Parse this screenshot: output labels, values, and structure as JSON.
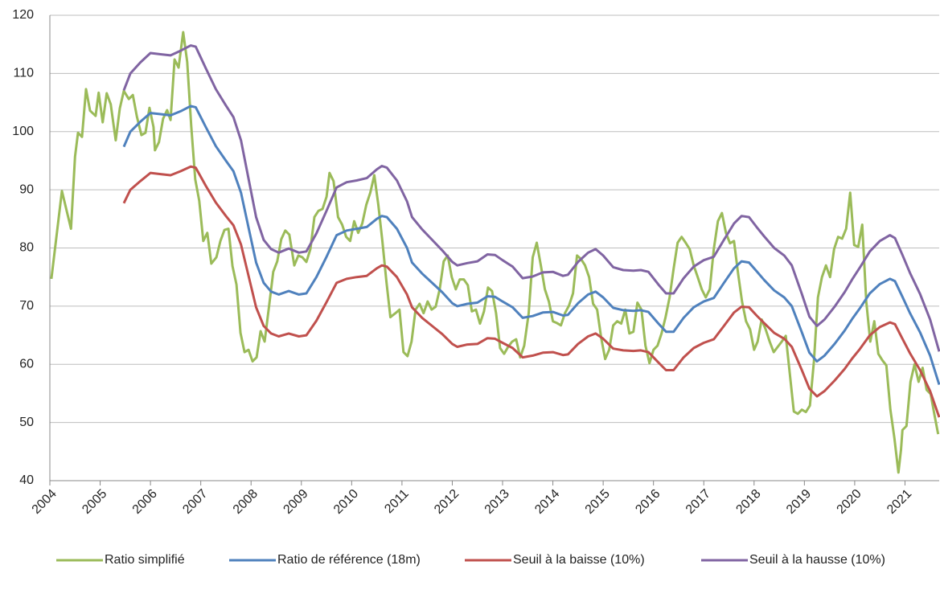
{
  "chart_data": {
    "type": "line",
    "xlim": [
      2004,
      2021.68
    ],
    "xticks": [
      2004,
      2005,
      2006,
      2007,
      2008,
      2009,
      2010,
      2011,
      2012,
      2013,
      2014,
      2015,
      2016,
      2017,
      2018,
      2019,
      2020,
      2021
    ],
    "ylim": [
      40,
      120
    ],
    "yticks": [
      40,
      50,
      60,
      70,
      80,
      90,
      100,
      110,
      120
    ],
    "grid": true,
    "legend": "bottom",
    "series": [
      {
        "name": "Ratio simplifié",
        "color": "#9bbb59",
        "x": [
          2004.03,
          2004.24,
          2004.42,
          2004.5,
          2004.56,
          2004.64,
          2004.72,
          2004.8,
          2004.91,
          2004.97,
          2005.05,
          2005.13,
          2005.21,
          2005.31,
          2005.39,
          2005.47,
          2005.57,
          2005.65,
          2005.73,
          2005.82,
          2005.9,
          2005.98,
          2006.06,
          2006.09,
          2006.17,
          2006.25,
          2006.33,
          2006.4,
          2006.48,
          2006.56,
          2006.65,
          2006.73,
          2006.81,
          2006.89,
          2006.97,
          2007.05,
          2007.13,
          2007.21,
          2007.31,
          2007.39,
          2007.47,
          2007.55,
          2007.63,
          2007.71,
          2007.79,
          2007.87,
          2007.95,
          2008.03,
          2008.11,
          2008.19,
          2008.27,
          2008.36,
          2008.44,
          2008.52,
          2008.6,
          2008.68,
          2008.76,
          2008.86,
          2008.94,
          2009.02,
          2009.1,
          2009.18,
          2009.26,
          2009.34,
          2009.42,
          2009.5,
          2009.56,
          2009.64,
          2009.73,
          2009.81,
          2009.89,
          2009.97,
          2010.05,
          2010.13,
          2010.21,
          2010.29,
          2010.37,
          2010.45,
          2010.53,
          2010.61,
          2010.69,
          2010.77,
          2010.87,
          2010.95,
          2011.03,
          2011.11,
          2011.19,
          2011.27,
          2011.35,
          2011.43,
          2011.51,
          2011.59,
          2011.67,
          2011.75,
          2011.83,
          2011.91,
          2011.99,
          2012.07,
          2012.15,
          2012.23,
          2012.31,
          2012.39,
          2012.47,
          2012.55,
          2012.63,
          2012.71,
          2012.79,
          2012.87,
          2012.95,
          2013.03,
          2013.11,
          2013.19,
          2013.27,
          2013.35,
          2013.43,
          2013.52,
          2013.6,
          2013.68,
          2013.76,
          2013.84,
          2013.92,
          2014.0,
          2014.08,
          2014.16,
          2014.24,
          2014.32,
          2014.4,
          2014.48,
          2014.56,
          2014.64,
          2014.72,
          2014.8,
          2014.88,
          2014.96,
          2015.04,
          2015.12,
          2015.2,
          2015.28,
          2015.36,
          2015.44,
          2015.52,
          2015.6,
          2015.68,
          2015.76,
          2015.84,
          2015.92,
          2016.0,
          2016.08,
          2016.16,
          2016.24,
          2016.32,
          2016.4,
          2016.48,
          2016.56,
          2016.64,
          2016.72,
          2016.8,
          2016.88,
          2016.96,
          2017.04,
          2017.12,
          2017.2,
          2017.28,
          2017.36,
          2017.44,
          2017.52,
          2017.6,
          2017.68,
          2017.76,
          2017.84,
          2017.92,
          2018.0,
          2018.07,
          2018.15,
          2018.23,
          2018.31,
          2018.39,
          2018.47,
          2018.55,
          2018.63,
          2018.71,
          2018.79,
          2018.87,
          2018.95,
          2019.03,
          2019.11,
          2019.19,
          2019.27,
          2019.35,
          2019.43,
          2019.51,
          2019.59,
          2019.67,
          2019.75,
          2019.83,
          2019.91,
          2019.99,
          2020.07,
          2020.15,
          2020.23,
          2020.31,
          2020.39,
          2020.47,
          2020.55,
          2020.63,
          2020.71,
          2020.79,
          2020.87,
          2020.92,
          2020.95,
          2021.03,
          2021.11,
          2021.19,
          2021.27,
          2021.35,
          2021.43,
          2021.51,
          2021.59,
          2021.66
        ],
        "values": [
          74.7,
          89.8,
          83.3,
          95.7,
          99.8,
          99.1,
          107.3,
          103.6,
          102.7,
          106.7,
          101.6,
          106.6,
          104.7,
          98.5,
          104,
          107,
          105.6,
          106.3,
          102.6,
          99.4,
          99.8,
          104.1,
          100.8,
          96.8,
          98.2,
          102.2,
          103.7,
          102,
          112.4,
          111,
          117.1,
          112,
          101,
          91.8,
          88.1,
          81.2,
          82.6,
          77.3,
          78.4,
          81.2,
          83.1,
          83.3,
          76.9,
          73.7,
          65.4,
          62.1,
          62.5,
          60.5,
          61.2,
          65.7,
          63.9,
          70.1,
          75.9,
          77.7,
          81.5,
          83,
          82.3,
          77,
          78.7,
          78.4,
          77.6,
          79.8,
          85.3,
          86.4,
          86.7,
          88.8,
          92.9,
          91.5,
          85.3,
          84,
          81.9,
          81.2,
          84.6,
          82.6,
          84.2,
          87.4,
          89.5,
          92.5,
          87.4,
          81.2,
          74.3,
          68.1,
          68.8,
          69.4,
          62.1,
          61.4,
          63.9,
          69.4,
          70.4,
          68.8,
          70.8,
          69.4,
          69.9,
          72.9,
          77.7,
          78.7,
          75,
          72.9,
          74.6,
          74.6,
          73.6,
          69.1,
          69.4,
          67,
          69.1,
          73.2,
          72.6,
          68.8,
          62.8,
          61.8,
          63,
          63.9,
          64.3,
          61.2,
          63.2,
          68.8,
          78.4,
          80.9,
          77,
          72.9,
          70.8,
          67.4,
          67.1,
          66.7,
          68.8,
          70.1,
          72.2,
          78.7,
          78.1,
          77,
          75,
          70.4,
          69.4,
          64.6,
          60.9,
          62.5,
          66.7,
          67.4,
          67,
          69.4,
          65.3,
          65.6,
          70.6,
          69.4,
          63.2,
          60.2,
          62.5,
          63.2,
          65.3,
          68.1,
          71.5,
          76.4,
          80.9,
          81.9,
          80.9,
          79.8,
          77,
          75,
          72.9,
          71.5,
          72.9,
          79.8,
          84.6,
          86,
          82.6,
          80.8,
          81.2,
          75.7,
          70.8,
          67.4,
          66,
          62.5,
          63.9,
          67.7,
          66,
          63.9,
          62.1,
          63,
          63.9,
          64.9,
          58.4,
          51.9,
          51.5,
          52.2,
          51.8,
          52.9,
          60.5,
          71.5,
          75,
          77,
          75,
          79.8,
          81.9,
          81.6,
          83.3,
          89.5,
          80.5,
          80.2,
          84,
          70.8,
          63.9,
          67.4,
          61.8,
          60.7,
          59.8,
          52.2,
          47.3,
          41.4,
          45.3,
          48.7,
          49.4,
          57,
          60,
          57,
          59.4,
          55.6,
          54.9,
          51.1,
          48
        ]
      },
      {
        "name": "Ratio de référence (18m)",
        "color": "#4f81bd",
        "x": [
          2005.47,
          2005.6,
          2005.8,
          2006.0,
          2006.2,
          2006.4,
          2006.6,
          2006.8,
          2006.9,
          2007.1,
          2007.3,
          2007.5,
          2007.65,
          2007.8,
          2007.95,
          2008.1,
          2008.25,
          2008.4,
          2008.55,
          2008.75,
          2008.95,
          2009.1,
          2009.3,
          2009.5,
          2009.7,
          2009.9,
          2010.1,
          2010.3,
          2010.5,
          2010.6,
          2010.7,
          2010.9,
          2011.1,
          2011.2,
          2011.4,
          2011.6,
          2011.8,
          2012.0,
          2012.1,
          2012.3,
          2012.5,
          2012.7,
          2012.85,
          2013.0,
          2013.2,
          2013.4,
          2013.6,
          2013.8,
          2014.0,
          2014.2,
          2014.3,
          2014.5,
          2014.7,
          2014.85,
          2015.0,
          2015.2,
          2015.4,
          2015.6,
          2015.75,
          2015.9,
          2016.1,
          2016.25,
          2016.4,
          2016.6,
          2016.8,
          2017.0,
          2017.2,
          2017.4,
          2017.6,
          2017.75,
          2017.9,
          2018.05,
          2018.2,
          2018.4,
          2018.6,
          2018.75,
          2018.95,
          2019.1,
          2019.25,
          2019.4,
          2019.6,
          2019.8,
          2019.95,
          2020.1,
          2020.3,
          2020.5,
          2020.7,
          2020.8,
          2020.95,
          2021.1,
          2021.3,
          2021.5,
          2021.68
        ],
        "values": [
          97.4,
          100,
          101.7,
          103.2,
          103,
          102.8,
          103.5,
          104.4,
          104.2,
          100.8,
          97.5,
          95,
          93.2,
          89.5,
          83.5,
          77.5,
          74,
          72.5,
          72,
          72.6,
          72,
          72.2,
          75,
          78.5,
          82.2,
          83,
          83.3,
          83.6,
          85,
          85.5,
          85.3,
          83.3,
          80,
          77.5,
          75.6,
          74,
          72.4,
          70.5,
          70,
          70.4,
          70.6,
          71.7,
          71.6,
          70.8,
          69.8,
          68,
          68.3,
          68.9,
          69,
          68.4,
          68.5,
          70.5,
          72,
          72.5,
          71.5,
          69.7,
          69.3,
          69.2,
          69.3,
          69,
          67,
          65.6,
          65.6,
          68,
          69.8,
          70.8,
          71.4,
          74,
          76.5,
          77.7,
          77.5,
          76,
          74.5,
          72.7,
          71.5,
          70,
          65.5,
          62,
          60.5,
          61.5,
          63.5,
          65.8,
          67.8,
          69.6,
          72.2,
          73.8,
          74.7,
          74.3,
          71.6,
          68.8,
          65.5,
          61.5,
          56.5
        ]
      },
      {
        "name": "Seuil à la baisse (10%)",
        "color": "#c0504d",
        "x": [
          2005.47,
          2005.6,
          2005.8,
          2006.0,
          2006.2,
          2006.4,
          2006.6,
          2006.8,
          2006.9,
          2007.1,
          2007.3,
          2007.5,
          2007.65,
          2007.8,
          2007.95,
          2008.1,
          2008.25,
          2008.4,
          2008.55,
          2008.75,
          2008.95,
          2009.1,
          2009.3,
          2009.5,
          2009.7,
          2009.9,
          2010.1,
          2010.3,
          2010.5,
          2010.6,
          2010.7,
          2010.9,
          2011.1,
          2011.2,
          2011.4,
          2011.6,
          2011.8,
          2012.0,
          2012.1,
          2012.3,
          2012.5,
          2012.7,
          2012.85,
          2013.0,
          2013.2,
          2013.4,
          2013.6,
          2013.8,
          2014.0,
          2014.2,
          2014.3,
          2014.5,
          2014.7,
          2014.85,
          2015.0,
          2015.2,
          2015.4,
          2015.6,
          2015.75,
          2015.9,
          2016.1,
          2016.25,
          2016.4,
          2016.6,
          2016.8,
          2017.0,
          2017.2,
          2017.4,
          2017.6,
          2017.75,
          2017.9,
          2018.05,
          2018.2,
          2018.4,
          2018.6,
          2018.75,
          2018.95,
          2019.1,
          2019.25,
          2019.4,
          2019.6,
          2019.8,
          2019.95,
          2020.1,
          2020.3,
          2020.5,
          2020.7,
          2020.8,
          2020.95,
          2021.1,
          2021.3,
          2021.5,
          2021.68
        ],
        "values": [
          87.7,
          90,
          91.5,
          92.9,
          92.7,
          92.5,
          93.2,
          94,
          93.8,
          90.7,
          87.8,
          85.5,
          83.9,
          80.6,
          75.2,
          69.8,
          66.6,
          65.3,
          64.8,
          65.3,
          64.8,
          65,
          67.5,
          70.7,
          74,
          74.7,
          75,
          75.2,
          76.5,
          77,
          76.8,
          75,
          72,
          69.8,
          68,
          66.6,
          65.2,
          63.5,
          63,
          63.4,
          63.5,
          64.5,
          64.4,
          63.7,
          62.8,
          61.2,
          61.5,
          62,
          62.1,
          61.6,
          61.7,
          63.5,
          64.8,
          65.3,
          64.4,
          62.7,
          62.4,
          62.3,
          62.4,
          62.1,
          60.3,
          59,
          59,
          61.2,
          62.8,
          63.7,
          64.3,
          66.6,
          68.9,
          69.9,
          69.8,
          68.4,
          67.1,
          65.4,
          64.4,
          63,
          59,
          55.8,
          54.5,
          55.4,
          57.2,
          59.2,
          61,
          62.6,
          65,
          66.4,
          67.2,
          66.9,
          64.4,
          61.9,
          59,
          55.4,
          50.9
        ]
      },
      {
        "name": "Seuil à la hausse (10%)",
        "color": "#8064a2",
        "x": [
          2005.47,
          2005.6,
          2005.8,
          2006.0,
          2006.2,
          2006.4,
          2006.6,
          2006.8,
          2006.9,
          2007.1,
          2007.3,
          2007.5,
          2007.65,
          2007.8,
          2007.95,
          2008.1,
          2008.25,
          2008.4,
          2008.55,
          2008.75,
          2008.95,
          2009.1,
          2009.3,
          2009.5,
          2009.7,
          2009.9,
          2010.1,
          2010.3,
          2010.5,
          2010.6,
          2010.7,
          2010.9,
          2011.1,
          2011.2,
          2011.4,
          2011.6,
          2011.8,
          2012.0,
          2012.1,
          2012.3,
          2012.5,
          2012.7,
          2012.85,
          2013.0,
          2013.2,
          2013.4,
          2013.6,
          2013.8,
          2014.0,
          2014.2,
          2014.3,
          2014.5,
          2014.7,
          2014.85,
          2015.0,
          2015.2,
          2015.4,
          2015.6,
          2015.75,
          2015.9,
          2016.1,
          2016.25,
          2016.4,
          2016.6,
          2016.8,
          2017.0,
          2017.2,
          2017.4,
          2017.6,
          2017.75,
          2017.9,
          2018.05,
          2018.2,
          2018.4,
          2018.6,
          2018.75,
          2018.95,
          2019.1,
          2019.25,
          2019.4,
          2019.6,
          2019.8,
          2019.95,
          2020.1,
          2020.3,
          2020.5,
          2020.7,
          2020.8,
          2020.95,
          2021.1,
          2021.3,
          2021.5,
          2021.68
        ],
        "values": [
          107.1,
          110,
          111.9,
          113.5,
          113.3,
          113.1,
          113.9,
          114.8,
          114.6,
          110.9,
          107.3,
          104.5,
          102.5,
          98.5,
          91.9,
          85.3,
          81.4,
          79.8,
          79.2,
          79.9,
          79.2,
          79.4,
          82.5,
          86.4,
          90.4,
          91.3,
          91.6,
          92,
          93.5,
          94.1,
          93.8,
          91.6,
          88,
          85.3,
          83.2,
          81.4,
          79.6,
          77.6,
          77,
          77.4,
          77.7,
          78.9,
          78.8,
          77.9,
          76.8,
          74.8,
          75.1,
          75.8,
          75.9,
          75.2,
          75.4,
          77.6,
          79.2,
          79.8,
          78.7,
          76.7,
          76.2,
          76.1,
          76.2,
          75.9,
          73.7,
          72.2,
          72.2,
          74.8,
          76.8,
          77.9,
          78.5,
          81.4,
          84.2,
          85.5,
          85.3,
          83.6,
          82,
          80,
          78.7,
          77,
          72.1,
          68.2,
          66.6,
          67.7,
          69.9,
          72.4,
          74.6,
          76.6,
          79.4,
          81.2,
          82.2,
          81.7,
          78.8,
          75.7,
          72.1,
          67.7,
          62.2
        ]
      }
    ]
  }
}
